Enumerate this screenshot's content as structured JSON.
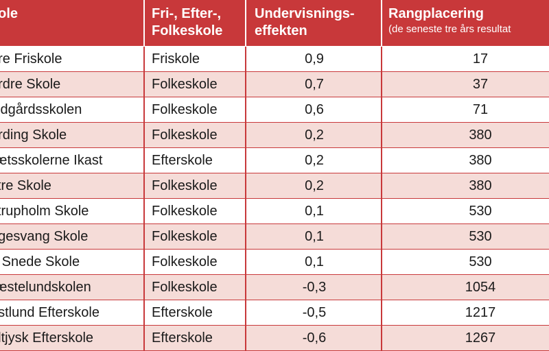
{
  "colors": {
    "header_bg": "#c8383a",
    "row_alt_bg": "#f5dcd8",
    "grid": "#c8383a"
  },
  "header": {
    "col_name": "kole",
    "col_type_line1": "Fri-, Efter-,",
    "col_type_line2": "Folkeskole",
    "col_effect_line1": "Undervisnings-",
    "col_effect_line2": "effekten",
    "col_rank_title": "Rangplacering",
    "col_rank_sub": "(de seneste tre års resultat"
  },
  "rows": [
    {
      "name": "hre Friskole",
      "type": "Friskole",
      "effect": "0,9",
      "rank": "17"
    },
    {
      "name": "ordre Skole",
      "type": "Folkeskole",
      "effect": "0,7",
      "rank": "37"
    },
    {
      "name": "yldgårdsskolen",
      "type": "Folkeskole",
      "effect": "0,6",
      "rank": "71"
    },
    {
      "name": "ording Skole",
      "type": "Folkeskole",
      "effect": "0,2",
      "rank": "380"
    },
    {
      "name": "rætsskolerne Ikast",
      "type": "Efterskole",
      "effect": "0,2",
      "rank": "380"
    },
    {
      "name": "stre Skole",
      "type": "Folkeskole",
      "effect": "0,2",
      "rank": "380"
    },
    {
      "name": "strupholm Skole",
      "type": "Folkeskole",
      "effect": "0,1",
      "rank": "530"
    },
    {
      "name": "ngesvang Skole",
      "type": "Folkeskole",
      "effect": "0,1",
      "rank": "530"
    },
    {
      "name": "r. Snede Skole",
      "type": "Folkeskole",
      "effect": "0,1",
      "rank": "530"
    },
    {
      "name": "ræstelundskolen",
      "type": "Folkeskole",
      "effect": "-0,3",
      "rank": "1054"
    },
    {
      "name": "estlund Efterskole",
      "type": "Efterskole",
      "effect": "-0,5",
      "rank": "1217"
    },
    {
      "name": "idtjysk Efterskole",
      "type": "Efterskole",
      "effect": "-0,6",
      "rank": "1267"
    }
  ]
}
